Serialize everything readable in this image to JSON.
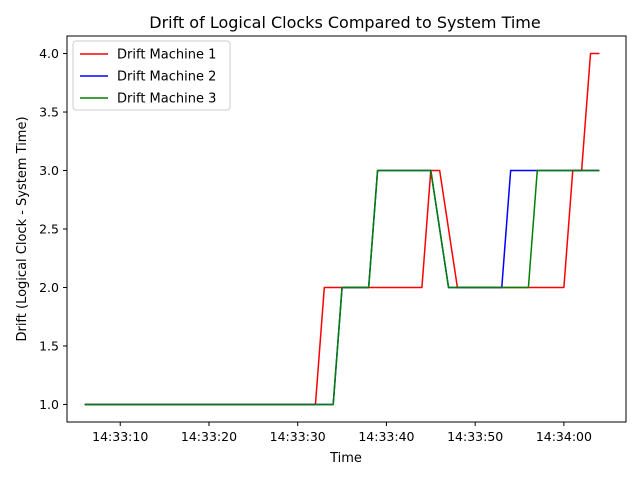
{
  "chart_data": {
    "type": "line",
    "title": "Drift of Logical Clocks Compared to System Time",
    "xlabel": "Time",
    "ylabel": "Drift (Logical Clock - System Time)",
    "x_unit": "clock time (HH:MM:SS)",
    "xlim": [
      "14:33:04",
      "14:34:07"
    ],
    "ylim": [
      0.85,
      4.15
    ],
    "x_ticks": [
      "14:33:10",
      "14:33:20",
      "14:33:30",
      "14:33:40",
      "14:33:50",
      "14:34:00"
    ],
    "y_ticks": [
      1.0,
      1.5,
      2.0,
      2.5,
      3.0,
      3.5,
      4.0
    ],
    "y_tick_labels": [
      "1.0",
      "1.5",
      "2.0",
      "2.5",
      "3.0",
      "3.5",
      "4.0"
    ],
    "grid": false,
    "legend": "top-left",
    "series": [
      {
        "name": "Drift Machine 1",
        "color": "#ff0000",
        "points": [
          [
            "14:33:06",
            1
          ],
          [
            "14:33:32",
            1
          ],
          [
            "14:33:33",
            2
          ],
          [
            "14:33:44",
            2
          ],
          [
            "14:33:45",
            3
          ],
          [
            "14:33:46",
            3
          ],
          [
            "14:33:48",
            2
          ],
          [
            "14:34:00",
            2
          ],
          [
            "14:34:01",
            3
          ],
          [
            "14:34:02",
            3
          ],
          [
            "14:34:03",
            4
          ],
          [
            "14:34:04",
            4
          ]
        ]
      },
      {
        "name": "Drift Machine 2",
        "color": "#0000ff",
        "points": [
          [
            "14:33:06",
            1
          ],
          [
            "14:33:34",
            1
          ],
          [
            "14:33:35",
            2
          ],
          [
            "14:33:38",
            2
          ],
          [
            "14:33:39",
            3
          ],
          [
            "14:33:45",
            3
          ],
          [
            "14:33:47",
            2
          ],
          [
            "14:33:53",
            2
          ],
          [
            "14:33:54",
            3
          ],
          [
            "14:34:04",
            3
          ]
        ]
      },
      {
        "name": "Drift Machine 3",
        "color": "#008000",
        "points": [
          [
            "14:33:06",
            1
          ],
          [
            "14:33:34",
            1
          ],
          [
            "14:33:35",
            2
          ],
          [
            "14:33:38",
            2
          ],
          [
            "14:33:39",
            3
          ],
          [
            "14:33:45",
            3
          ],
          [
            "14:33:47",
            2
          ],
          [
            "14:33:56",
            2
          ],
          [
            "14:33:57",
            3
          ],
          [
            "14:34:04",
            3
          ]
        ]
      }
    ]
  }
}
